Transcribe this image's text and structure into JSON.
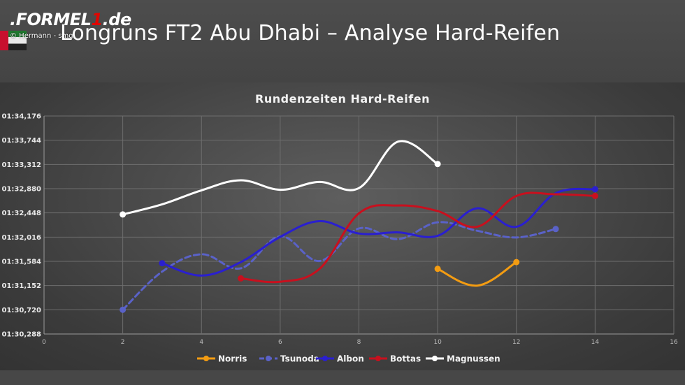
{
  "header": {
    "logo_prefix": ".FORMEL",
    "logo_one": "1",
    "logo_suffix": ".de",
    "credit": "© Hermann - smg",
    "headline": "Longruns FT2 Abu Dhabi – Analyse Hard-Reifen"
  },
  "chart_data": {
    "type": "line",
    "title": "Rundenzeiten Hard-Reifen",
    "xlabel": "",
    "ylabel": "",
    "xlim": [
      0,
      16
    ],
    "ylim": [
      90.288,
      94.176
    ],
    "x_ticks": [
      "0",
      "2",
      "4",
      "6",
      "8",
      "10",
      "12",
      "14",
      "16"
    ],
    "x_tick_values": [
      0,
      2,
      4,
      6,
      8,
      10,
      12,
      14,
      16
    ],
    "y_ticks": [
      "01:30,288",
      "01:30,720",
      "01:31,152",
      "01:31,584",
      "01:32,016",
      "01:32,448",
      "01:32,880",
      "01:33,312",
      "01:33,744",
      "01:34,176"
    ],
    "y_tick_values": [
      90.288,
      90.72,
      91.152,
      91.584,
      92.016,
      92.448,
      92.88,
      93.312,
      93.744,
      94.176
    ],
    "grid": true,
    "legend_position": "bottom",
    "series": [
      {
        "name": "Norris",
        "color": "#f39c12",
        "dashed": false,
        "x": [
          10,
          11,
          12
        ],
        "y": [
          91.45,
          91.15,
          91.57
        ]
      },
      {
        "name": "Tsunoda",
        "color": "#5a62c8",
        "dashed": true,
        "x": [
          2,
          3,
          4,
          5,
          6,
          7,
          8,
          9,
          10,
          11,
          12,
          13
        ],
        "y": [
          90.72,
          91.4,
          91.71,
          91.46,
          92.03,
          91.59,
          92.17,
          91.98,
          92.28,
          92.13,
          92.01,
          92.16
        ]
      },
      {
        "name": "Albon",
        "color": "#2a1fd0",
        "dashed": false,
        "x": [
          3,
          4,
          5,
          6,
          7,
          8,
          9,
          10,
          11,
          12,
          13,
          14
        ],
        "y": [
          91.55,
          91.33,
          91.57,
          92.02,
          92.3,
          92.08,
          92.1,
          92.04,
          92.53,
          92.2,
          92.8,
          92.87
        ]
      },
      {
        "name": "Bottas",
        "color": "#c8101e",
        "dashed": false,
        "x": [
          5,
          6,
          7,
          8,
          9,
          10,
          11,
          12,
          13,
          14
        ],
        "y": [
          91.28,
          91.22,
          91.45,
          92.44,
          92.58,
          92.48,
          92.2,
          92.75,
          92.78,
          92.75
        ]
      },
      {
        "name": "Magnussen",
        "color": "#ffffff",
        "dashed": false,
        "x": [
          2,
          3,
          4,
          5,
          6,
          7,
          8,
          9,
          10
        ],
        "y": [
          92.42,
          92.6,
          92.85,
          93.03,
          92.86,
          93.0,
          92.89,
          93.72,
          93.32
        ]
      }
    ]
  }
}
